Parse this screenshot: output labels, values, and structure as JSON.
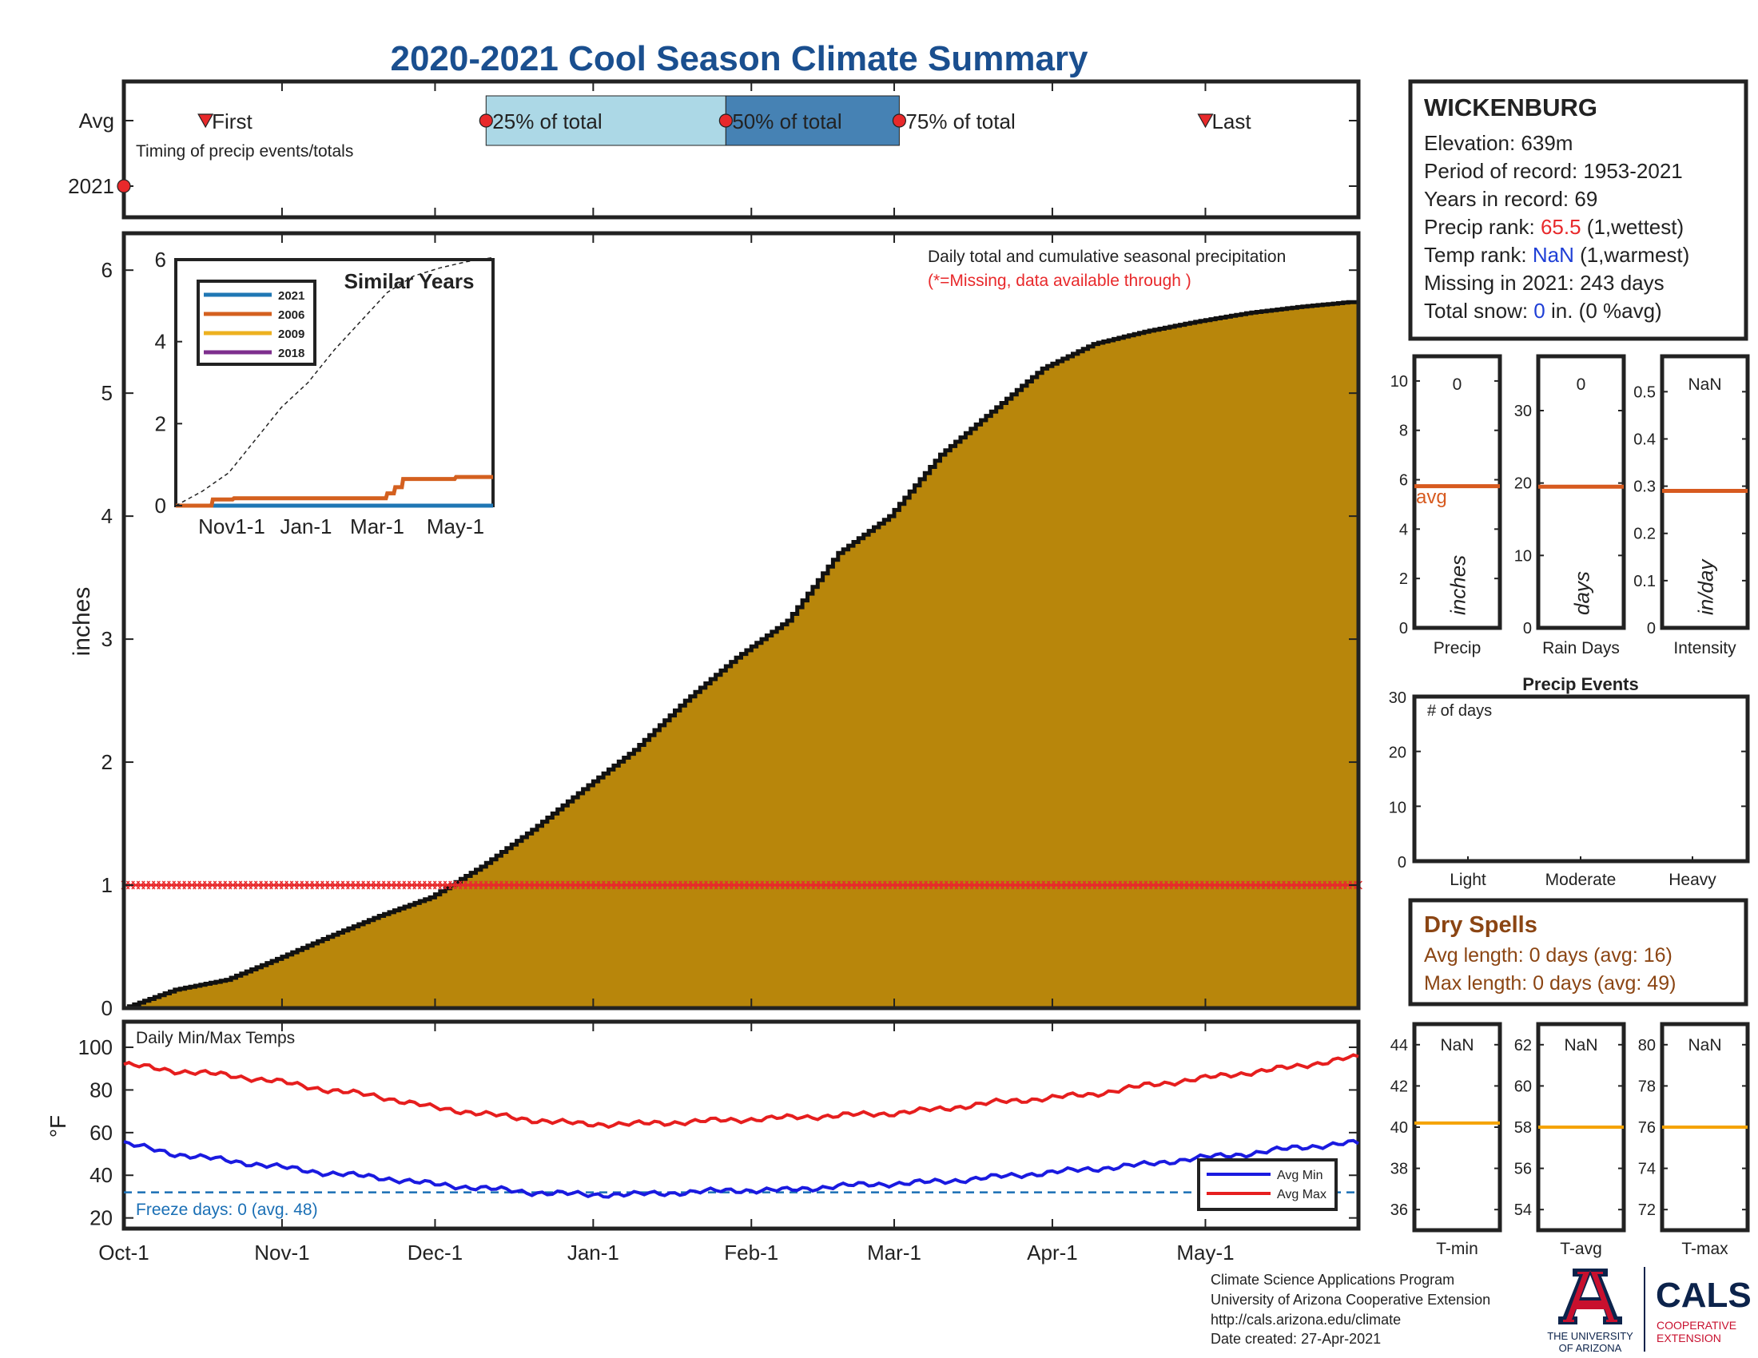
{
  "title": "2020-2021 Cool Season Climate Summary",
  "timing": {
    "row_labels": [
      "Avg",
      "2021"
    ],
    "caption": "Timing of precip events/totals",
    "markers": [
      {
        "label": "First",
        "date": "2020-10-17",
        "shape": "triangle"
      },
      {
        "label": "25% of total",
        "date": "2020-12-11",
        "shape": "circle"
      },
      {
        "label": "50% of total",
        "date": "2021-01-27",
        "shape": "circle"
      },
      {
        "label": "75% of total",
        "date": "2021-03-02",
        "shape": "circle"
      },
      {
        "label": "Last",
        "date": "2021-05-01",
        "shape": "triangle"
      }
    ],
    "year_marker_date": "2020-10-01"
  },
  "station": {
    "name": "WICKENBURG",
    "elevation": "Elevation: 639m",
    "period": "Period of record: 1953-2021",
    "years": "Years in record: 69",
    "precip_rank_prefix": "Precip rank: ",
    "precip_rank_value": "65.5",
    "precip_rank_suffix": " (1,wettest)",
    "temp_rank_prefix": "Temp rank: ",
    "temp_rank_value": "NaN",
    "temp_rank_suffix": " (1,warmest)",
    "missing": "Missing in 2021: 243 days",
    "snow_prefix": "Total snow: ",
    "snow_value": "0",
    "snow_suffix": " in. (0 %avg)"
  },
  "main_chart": {
    "ylabel": "inches",
    "annotation": "Daily total and cumulative seasonal precipitation",
    "missing_note": "(*=Missing, data available through )",
    "x_ticks": [
      "Oct-1",
      "Nov-1",
      "Dec-1",
      "Jan-1",
      "Feb-1",
      "Mar-1",
      "Apr-1",
      "May-1"
    ],
    "y_ticks": [
      "0",
      "1",
      "2",
      "3",
      "4",
      "5",
      "6"
    ]
  },
  "inset": {
    "title": "Similar Years",
    "legend": [
      "2021",
      "2006",
      "2009",
      "2018"
    ],
    "x_ticks": [
      "Nov1-1",
      "Jan-1",
      "Mar-1",
      "May-1"
    ],
    "y_ticks": [
      "0",
      "2",
      "4",
      "6"
    ]
  },
  "small_bars": {
    "panels": [
      {
        "label": "Precip",
        "unit": "inches",
        "value": "0",
        "ticks": [
          "0",
          "2",
          "4",
          "6",
          "8",
          "10"
        ],
        "avg_label": "avg"
      },
      {
        "label": "Rain Days",
        "unit": "days",
        "value": "0",
        "ticks": [
          "0",
          "10",
          "20",
          "30"
        ]
      },
      {
        "label": "Intensity",
        "unit": "in/day",
        "value": "NaN",
        "ticks": [
          "0",
          "0.1",
          "0.2",
          "0.3",
          "0.4",
          "0.5"
        ]
      }
    ]
  },
  "events": {
    "title": "Precip Events",
    "ylabel": "# of days",
    "categories": [
      "Light",
      "Moderate",
      "Heavy"
    ],
    "y_ticks": [
      "0",
      "10",
      "20",
      "30"
    ]
  },
  "dry_spells": {
    "title": "Dry Spells",
    "avg": "Avg length: 0 days (avg: 16)",
    "max": "Max length: 0 days (avg: 49)"
  },
  "temps": {
    "title": "Daily Min/Max Temps",
    "ylabel": "°F",
    "freeze": "Freeze days: 0 (avg. 48)",
    "legend_min": "Avg Min",
    "legend_max": "Avg Max",
    "y_ticks": [
      "20",
      "40",
      "60",
      "80",
      "100"
    ]
  },
  "temp_panels": [
    {
      "label": "T-min",
      "value": "NaN",
      "ticks": [
        "36",
        "38",
        "40",
        "42",
        "44"
      ]
    },
    {
      "label": "T-avg",
      "value": "NaN",
      "ticks": [
        "54",
        "56",
        "58",
        "60",
        "62"
      ]
    },
    {
      "label": "T-max",
      "value": "NaN",
      "ticks": [
        "72",
        "74",
        "76",
        "78",
        "80"
      ]
    }
  ],
  "footer": {
    "line1": "Climate Science Applications Program",
    "line2": "University of Arizona Cooperative Extension",
    "line3": "http://cals.arizona.edu/climate",
    "line4": " Date created: 27-Apr-2021",
    "ua_line1": "THE UNIVERSITY",
    "ua_line2": "OF ARIZONA",
    "cals": "CALS",
    "cals_sub1": "COOPERATIVE",
    "cals_sub2": "EXTENSION"
  },
  "colors": {
    "title": "#1a4f8f",
    "fill": "#b8860b",
    "missing": "#e8292b",
    "precip_rank": "#e8292b",
    "temp_rank": "#1f3fd6",
    "avg_line": "#d75a1f",
    "temp_avg_line": "#f5a300",
    "max_temp": "#e61e1e",
    "min_temp": "#1a1ae0",
    "freeze": "#1a6fb5",
    "dry": "#8b4513",
    "box25": "#acd8e6",
    "box50": "#4682b4",
    "ua_red": "#c8102e",
    "ua_blue": "#0c234b"
  },
  "chart_data": [
    {
      "type": "area",
      "name": "Cumulative seasonal precipitation",
      "x_unit": "day",
      "ylim": [
        0,
        6.3
      ],
      "x": [
        0,
        10,
        20,
        30,
        40,
        50,
        60,
        70,
        80,
        90,
        100,
        110,
        120,
        130,
        140,
        150,
        160,
        170,
        180,
        190,
        200,
        210,
        220,
        230,
        240
      ],
      "values": [
        0,
        0.15,
        0.23,
        0.4,
        0.58,
        0.75,
        0.9,
        1.15,
        1.45,
        1.78,
        2.1,
        2.5,
        2.85,
        3.15,
        3.7,
        4.0,
        4.5,
        4.85,
        5.2,
        5.4,
        5.5,
        5.58,
        5.65,
        5.7,
        5.74
      ],
      "missing_line_value": 1.0
    },
    {
      "type": "line",
      "name": "Similar Years",
      "ylim": [
        0,
        6
      ],
      "x": [
        0,
        20,
        40,
        60,
        80,
        100,
        120,
        140,
        160,
        180,
        200,
        220,
        240
      ],
      "series": [
        {
          "name": "2021",
          "values": [
            0,
            0,
            0,
            0,
            0,
            0,
            0,
            0,
            0,
            0,
            0,
            0,
            0
          ]
        },
        {
          "name": "2006",
          "values": [
            0,
            0.15,
            0.18,
            0.18,
            0.18,
            0.18,
            0.18,
            0.18,
            0.3,
            0.65,
            0.68,
            0.7,
            0.7
          ]
        },
        {
          "name": "2009",
          "values": [
            0,
            0,
            0,
            0,
            0,
            0,
            0,
            0,
            0,
            0,
            0,
            0,
            0
          ]
        },
        {
          "name": "2018",
          "values": [
            0,
            0,
            0,
            0,
            0,
            0,
            0,
            0,
            0,
            0,
            0,
            0,
            0
          ]
        },
        {
          "values": [
            0,
            0.35,
            0.8,
            1.6,
            2.4,
            3.0,
            3.8,
            4.5,
            5.2,
            5.6,
            5.8,
            5.95,
            6.05
          ]
        }
      ]
    },
    {
      "type": "line",
      "name": "Daily Min/Max Temps",
      "ylim": [
        15,
        112
      ],
      "x": [
        0,
        10,
        20,
        30,
        40,
        50,
        60,
        70,
        80,
        90,
        100,
        110,
        120,
        130,
        140,
        150,
        160,
        170,
        180,
        190,
        200,
        210,
        220,
        230,
        240
      ],
      "series": [
        {
          "name": "Avg Max",
          "values": [
            92,
            89,
            87,
            84,
            80,
            77,
            72,
            69,
            66,
            64,
            64,
            65,
            66,
            67,
            68,
            69,
            71,
            74,
            76,
            78,
            82,
            85,
            88,
            91,
            95
          ]
        },
        {
          "name": "Avg Min",
          "values": [
            55,
            50,
            47,
            44,
            41,
            39,
            36,
            34,
            32,
            31,
            31,
            32,
            33,
            33,
            35,
            36,
            37,
            39,
            41,
            43,
            45,
            48,
            50,
            53,
            55
          ]
        }
      ],
      "reference_line": 32
    },
    {
      "type": "bar",
      "name": "Precip summary",
      "categories": [
        "Precip",
        "Rain Days",
        "Intensity"
      ],
      "series": [
        {
          "name": "avg",
          "values": [
            5.74,
            19.5,
            0.29
          ]
        }
      ]
    },
    {
      "type": "bar",
      "name": "Precip Events",
      "categories": [
        "Light",
        "Moderate",
        "Heavy"
      ],
      "values": [
        0,
        0,
        0
      ],
      "ylim": [
        0,
        30
      ]
    },
    {
      "type": "bar",
      "name": "Temperature summary",
      "categories": [
        "T-min",
        "T-avg",
        "T-max"
      ],
      "series": [
        {
          "name": "avg",
          "values": [
            40.2,
            58.0,
            76.0
          ]
        }
      ]
    }
  ]
}
